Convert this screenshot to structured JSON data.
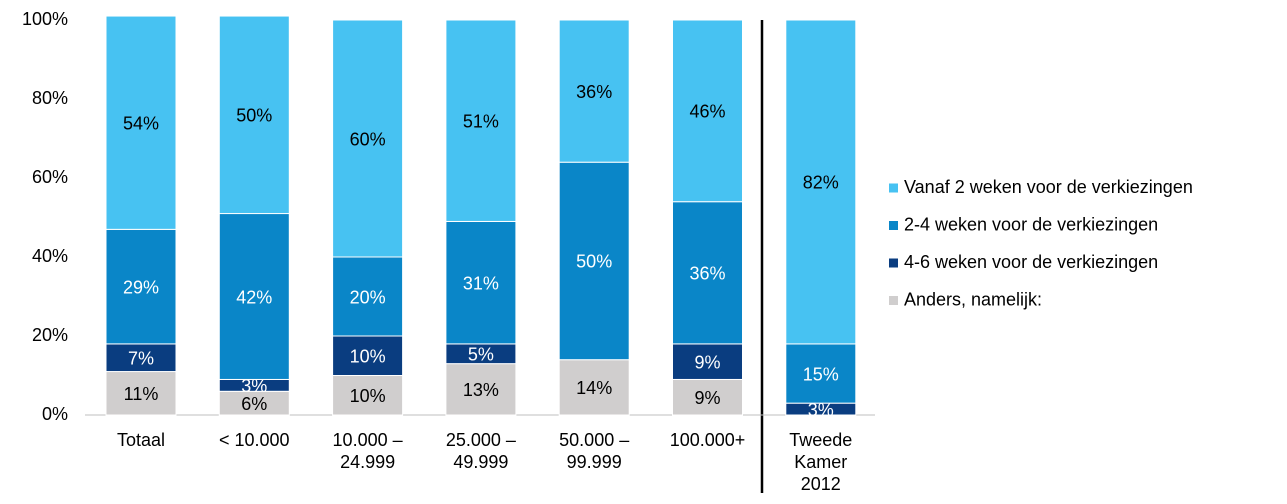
{
  "chart_data": {
    "type": "stacked_bar",
    "categories": [
      [
        "Totaal"
      ],
      [
        "< 10.000"
      ],
      [
        "10.000 –",
        "24.999"
      ],
      [
        "25.000 –",
        "49.999"
      ],
      [
        "50.000 –",
        "99.999"
      ],
      [
        "100.000+"
      ],
      [
        "Tweede",
        "Kamer",
        "2012"
      ]
    ],
    "series": [
      {
        "name": "Anders, namelijk:",
        "color": "#d0cece",
        "values": [
          11,
          6,
          10,
          13,
          14,
          9,
          null
        ],
        "value_labels": [
          "11%",
          "6%",
          "10%",
          "13%",
          "14%",
          "9%",
          null
        ]
      },
      {
        "name": "4-6 weken voor de verkiezingen",
        "color": "#0a3d80",
        "values": [
          7,
          3,
          10,
          5,
          null,
          9,
          3
        ],
        "value_labels": [
          "7%",
          "3%",
          "10%",
          "5%",
          null,
          "9%",
          "3%"
        ]
      },
      {
        "name": "2-4 weken voor de verkiezingen",
        "color": "#0a86c8",
        "values": [
          29,
          42,
          20,
          31,
          50,
          36,
          15
        ],
        "value_labels": [
          "29%",
          "42%",
          "20%",
          "31%",
          "50%",
          "36%",
          "15%"
        ]
      },
      {
        "name": "Vanaf 2 weken voor de verkiezingen",
        "color": "#47c2f2",
        "values": [
          54,
          50,
          60,
          51,
          36,
          46,
          82
        ],
        "value_labels": [
          "54%",
          "50%",
          "60%",
          "51%",
          "36%",
          "46%",
          "82%"
        ]
      }
    ],
    "ylim": [
      0,
      100
    ],
    "yticks": [
      {
        "value": 0,
        "label": "0%"
      },
      {
        "value": 20,
        "label": "20%"
      },
      {
        "value": 40,
        "label": "40%"
      },
      {
        "value": 60,
        "label": "60%"
      },
      {
        "value": 80,
        "label": "80%"
      },
      {
        "value": 100,
        "label": "100%"
      }
    ],
    "legend": "right"
  }
}
